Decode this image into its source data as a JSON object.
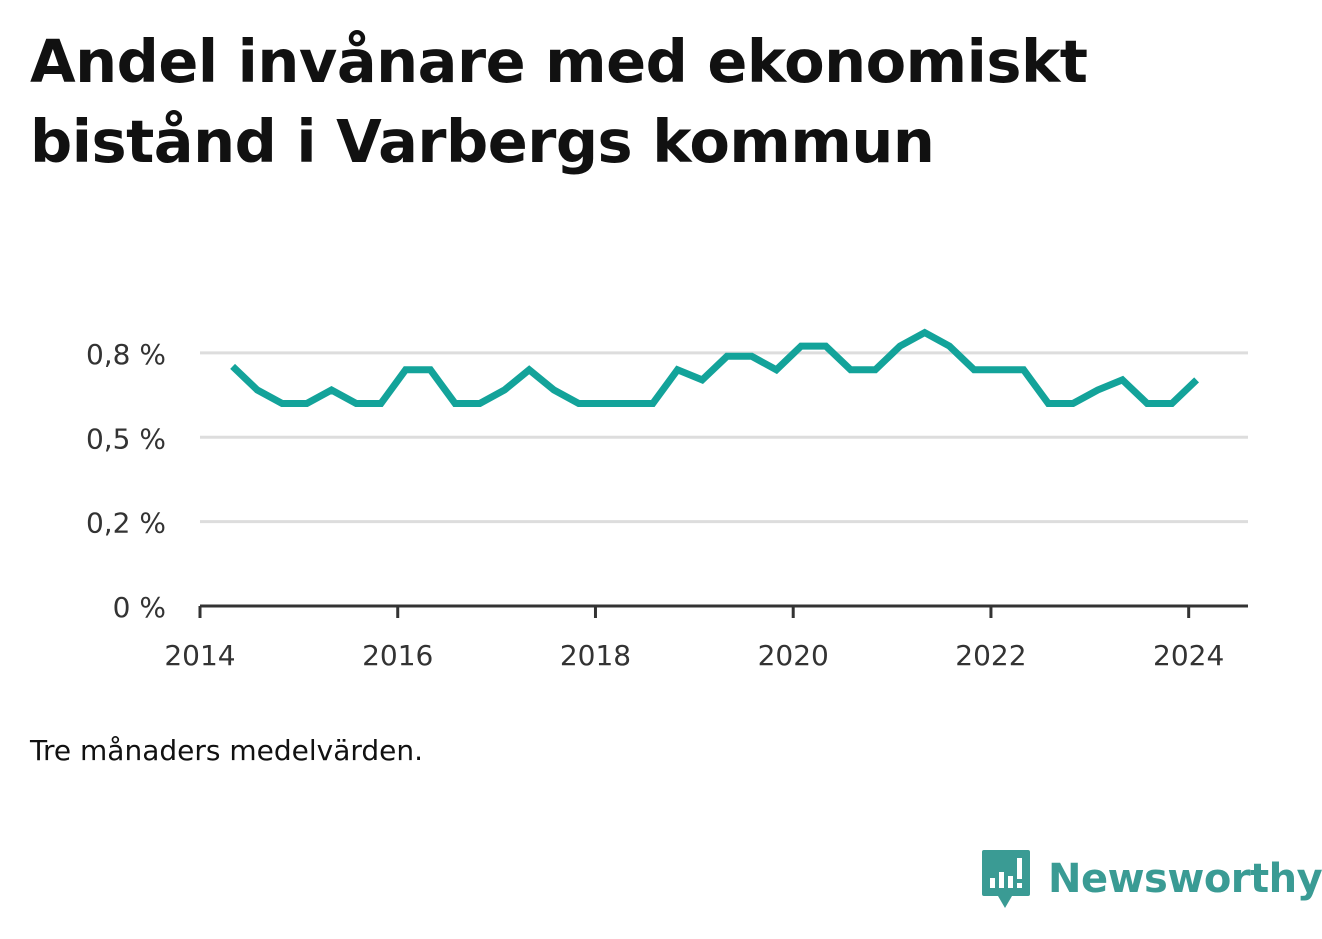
{
  "title": {
    "line1": "Andel invånare med ekonomiskt",
    "line2": "bistånd i Varbergs kommun"
  },
  "note": "Tre månaders medelvärden.",
  "brand": {
    "name": "Newsworthy",
    "icon": "newsworthy-logo-icon",
    "color": "#3a9b94"
  },
  "chart_data": {
    "type": "line",
    "title": "Andel invånare med ekonomiskt bistånd i Varbergs kommun",
    "xlabel": "",
    "ylabel": "",
    "x_ticks": [
      2014,
      2016,
      2018,
      2020,
      2022,
      2024
    ],
    "y_ticks": [
      {
        "value": 0,
        "label": "0 %"
      },
      {
        "value": 0.25,
        "label": "0,2 %"
      },
      {
        "value": 0.5,
        "label": "0,5 %"
      },
      {
        "value": 0.75,
        "label": "0,8 %"
      }
    ],
    "xlim": [
      2014.0,
      2024.6
    ],
    "ylim": [
      0,
      0.8
    ],
    "grid": true,
    "legend": "none",
    "line_color": "#13a39a",
    "series": [
      {
        "x": [
          2014.33,
          2014.58,
          2014.83,
          2015.08,
          2015.33,
          2015.58,
          2015.83,
          2016.08,
          2016.33,
          2016.58,
          2016.83,
          2017.08,
          2017.33,
          2017.58,
          2017.83,
          2018.08,
          2018.33,
          2018.58,
          2018.83,
          2019.08,
          2019.33,
          2019.58,
          2019.83,
          2020.08,
          2020.33,
          2020.58,
          2020.83,
          2021.08,
          2021.33,
          2021.58,
          2021.83,
          2022.08,
          2022.33,
          2022.58,
          2022.83,
          2023.08,
          2023.33,
          2023.58,
          2023.83,
          2024.08
        ],
        "values": [
          0.71,
          0.64,
          0.6,
          0.6,
          0.64,
          0.6,
          0.6,
          0.7,
          0.7,
          0.6,
          0.6,
          0.64,
          0.7,
          0.64,
          0.6,
          0.6,
          0.6,
          0.6,
          0.7,
          0.67,
          0.74,
          0.74,
          0.7,
          0.77,
          0.77,
          0.7,
          0.7,
          0.77,
          0.81,
          0.77,
          0.7,
          0.7,
          0.7,
          0.6,
          0.6,
          0.64,
          0.67,
          0.6,
          0.6,
          0.67
        ]
      }
    ]
  }
}
